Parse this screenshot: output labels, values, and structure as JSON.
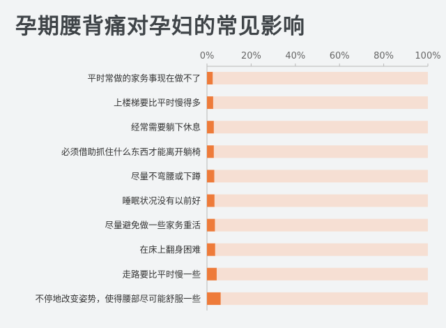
{
  "title": "孕期腰背痛对孕妇的常见影响",
  "colors": {
    "background": "#f2f4f5",
    "bar_fill": "#ee7b3a",
    "bar_track": "#f6dfd3",
    "axis": "#b8b8b8"
  },
  "chart_data": {
    "type": "bar",
    "orientation": "horizontal",
    "stacked_percent": true,
    "title": "孕期腰背痛对孕妇的常见影响",
    "xlabel": "",
    "ylabel": "",
    "xlim": [
      0,
      100
    ],
    "x_ticks": [
      "0%",
      "20%",
      "40%",
      "60%",
      "80%",
      "100%"
    ],
    "x_axis_position": "top",
    "grid": false,
    "categories": [
      "平时常做的家务事现在做不了",
      "上楼梯要比平时慢得多",
      "经常需要躺下休息",
      "必须借助抓住什么东西才能离开躺椅",
      "尽量不弯腰或下蹲",
      "睡眠状况没有以前好",
      "尽量避免做一些家务重活",
      "在床上翻身困难",
      "走路要比平时慢一些",
      "不停地改变姿势，使得腰部尽可能舒服一些"
    ],
    "series": [
      {
        "values": [
          2.6,
          2.8,
          3.1,
          3.1,
          3.3,
          3.4,
          3.6,
          3.7,
          4.4,
          6.2
        ]
      },
      {
        "values": [
          97.4,
          97.2,
          96.9,
          96.9,
          96.7,
          96.6,
          96.4,
          96.3,
          95.6,
          93.8
        ]
      }
    ]
  }
}
